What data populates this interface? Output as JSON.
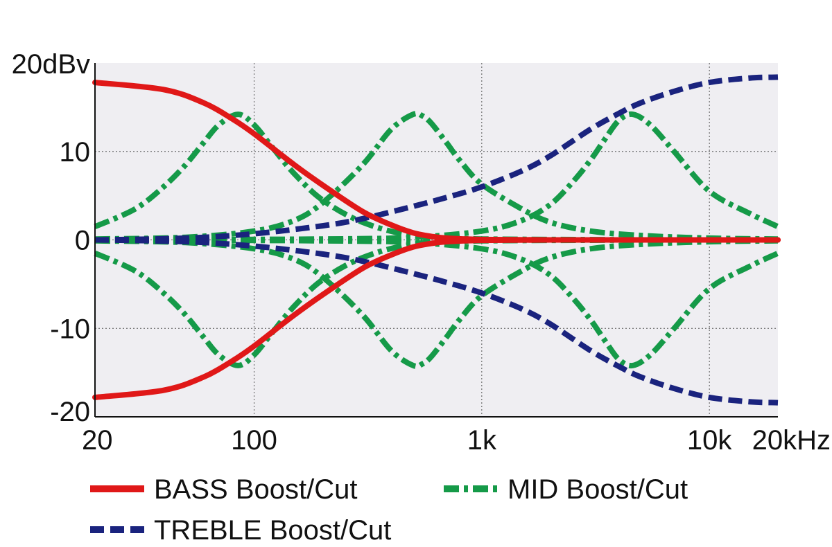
{
  "chart_data": {
    "type": "line",
    "x_scale": "log",
    "xlim": [
      20,
      20000
    ],
    "ylim": [
      -20,
      20
    ],
    "grid": true,
    "legend_position": "bottom",
    "x_ticks": [
      {
        "value": 20,
        "label": "20"
      },
      {
        "value": 100,
        "label": "100"
      },
      {
        "value": 1000,
        "label": "1k"
      },
      {
        "value": 10000,
        "label": "10k"
      },
      {
        "value": 20000,
        "label": "20kHz"
      }
    ],
    "y_ticks": [
      {
        "value": 20,
        "label": "20dBv"
      },
      {
        "value": 10,
        "label": "10"
      },
      {
        "value": 0,
        "label": "0"
      },
      {
        "value": -10,
        "label": "-10"
      },
      {
        "value": -20,
        "label": "-20"
      }
    ],
    "series": [
      {
        "name": "BASS Boost/Cut",
        "style": "solid",
        "color": "#e01818",
        "curves": [
          {
            "x": [
              20,
              40,
              60,
              80,
              100,
              150,
              200,
              300,
              400,
              500,
              600,
              700,
              1000,
              2000,
              5000,
              20000
            ],
            "y": [
              17.8,
              17,
              15.5,
              13.7,
              12,
              8.5,
              6.2,
              3.2,
              1.7,
              0.8,
              0.4,
              0.2,
              0.05,
              0,
              0,
              0
            ]
          },
          {
            "x": [
              20,
              40,
              60,
              80,
              100,
              150,
              200,
              300,
              400,
              500,
              600,
              700,
              1000,
              2000,
              5000,
              20000
            ],
            "y": [
              -17.8,
              -17,
              -15.5,
              -13.7,
              -12,
              -8.5,
              -6.2,
              -3.2,
              -1.7,
              -0.8,
              -0.4,
              -0.2,
              -0.05,
              0,
              0,
              0
            ]
          }
        ]
      },
      {
        "name": "MID Boost/Cut",
        "style": "dashdot",
        "color": "#159a48",
        "curves": [
          {
            "x": [
              20,
              30,
              40,
              50,
              60,
              70,
              85,
              100,
              120,
              150,
              200,
              300,
              500,
              1000,
              20000
            ],
            "y": [
              1.5,
              3.5,
              6,
              8.5,
              11,
              13,
              14.2,
              13,
              10.5,
              7.5,
              4.5,
              2,
              0.5,
              0.1,
              0
            ]
          },
          {
            "x": [
              20,
              30,
              40,
              50,
              60,
              70,
              85,
              100,
              120,
              150,
              200,
              300,
              500,
              1000,
              20000
            ],
            "y": [
              -1.5,
              -3.5,
              -6,
              -8.5,
              -11,
              -13,
              -14.2,
              -13,
              -10.5,
              -7.5,
              -4.5,
              -2,
              -0.5,
              -0.1,
              0
            ]
          },
          {
            "x": [
              20,
              50,
              100,
              150,
              200,
              300,
              400,
              500,
              550,
              600,
              700,
              800,
              1000,
              1500,
              2000,
              3000,
              5000,
              10000,
              20000
            ],
            "y": [
              0.1,
              0.3,
              1,
              2.2,
              4.2,
              8.5,
              12.5,
              14.2,
              14,
              13.2,
              11,
              9,
              6.3,
              3.5,
              2,
              1,
              0.5,
              0.2,
              0.1
            ]
          },
          {
            "x": [
              20,
              50,
              100,
              150,
              200,
              300,
              400,
              500,
              550,
              600,
              700,
              800,
              1000,
              1500,
              2000,
              3000,
              5000,
              10000,
              20000
            ],
            "y": [
              -0.1,
              -0.3,
              -1,
              -2.2,
              -4.2,
              -8.5,
              -12.5,
              -14.2,
              -14,
              -13.2,
              -11,
              -9,
              -6.3,
              -3.5,
              -2,
              -1,
              -0.5,
              -0.2,
              -0.1
            ]
          },
          {
            "x": [
              20,
              200,
              500,
              1000,
              1500,
              2000,
              2500,
              3000,
              3500,
              4000,
              4600,
              5500,
              7000,
              10000,
              15000,
              20000
            ],
            "y": [
              0,
              0.1,
              0.3,
              1,
              2.2,
              4,
              6.5,
              9,
              11.5,
              13.5,
              14.2,
              13,
              10,
              5.5,
              3,
              1.5
            ]
          },
          {
            "x": [
              20,
              200,
              500,
              1000,
              1500,
              2000,
              2500,
              3000,
              3500,
              4000,
              4600,
              5500,
              7000,
              10000,
              15000,
              20000
            ],
            "y": [
              0,
              -0.1,
              -0.3,
              -1,
              -2.2,
              -4,
              -6.5,
              -9,
              -11.5,
              -13.5,
              -14.2,
              -13,
              -10,
              -5.5,
              -3,
              -1.5
            ]
          }
        ]
      },
      {
        "name": "TREBLE Boost/Cut",
        "style": "dashed",
        "color": "#1a237e",
        "curves": [
          {
            "x": [
              20,
              50,
              100,
              200,
              300,
              500,
              700,
              1000,
              1500,
              2000,
              3000,
              4000,
              5000,
              7000,
              10000,
              15000,
              20000
            ],
            "y": [
              0,
              0.2,
              0.7,
              1.6,
              2.4,
              3.8,
              4.8,
              6,
              7.8,
              9.5,
              12.5,
              14.3,
              15.5,
              16.8,
              17.8,
              18.3,
              18.4
            ]
          },
          {
            "x": [
              20,
              50,
              100,
              200,
              300,
              500,
              700,
              1000,
              1500,
              2000,
              3000,
              4000,
              5000,
              7000,
              10000,
              15000,
              20000
            ],
            "y": [
              0,
              -0.2,
              -0.7,
              -1.6,
              -2.4,
              -3.8,
              -4.8,
              -6,
              -7.8,
              -9.5,
              -12.5,
              -14.3,
              -15.5,
              -16.8,
              -17.8,
              -18.3,
              -18.4
            ]
          }
        ]
      }
    ]
  }
}
